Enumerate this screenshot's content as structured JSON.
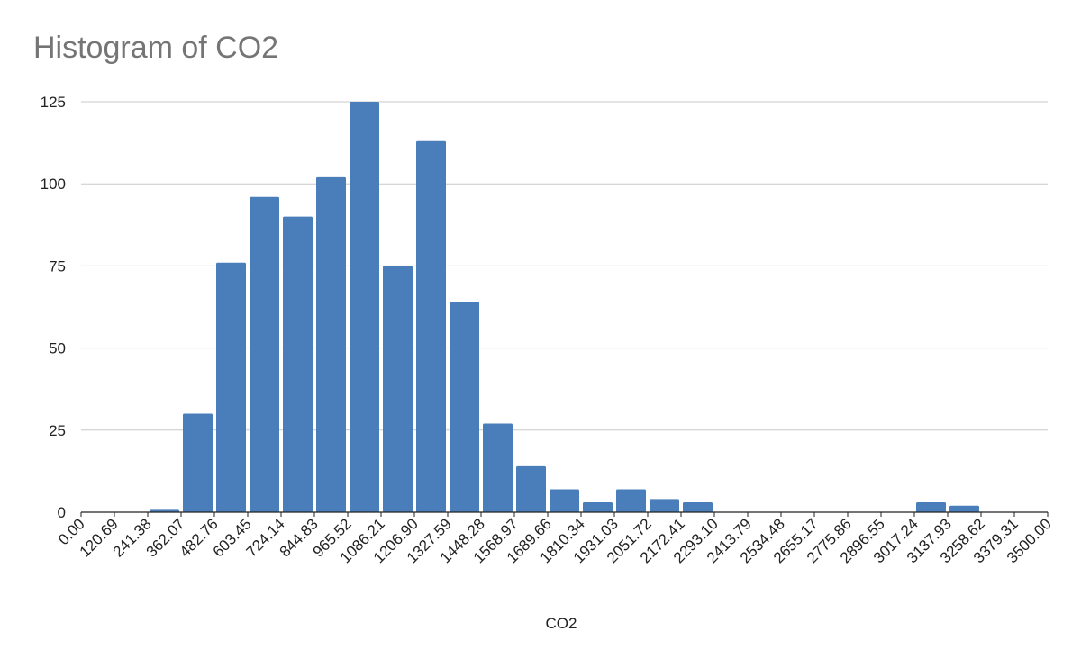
{
  "chart_data": {
    "type": "bar",
    "title": "Histogram of CO2",
    "xlabel": "CO2",
    "ylabel": "",
    "ylim": [
      0,
      125
    ],
    "y_ticks": [
      "0",
      "25",
      "50",
      "75",
      "100",
      "125"
    ],
    "grid": true,
    "bar_color": "#4a7ebb",
    "x_bin_edges": [
      "0.00",
      "120.69",
      "241.38",
      "362.07",
      "482.76",
      "603.45",
      "724.14",
      "844.83",
      "965.52",
      "1086.21",
      "1206.90",
      "1327.59",
      "1448.28",
      "1568.97",
      "1689.66",
      "1810.34",
      "1931.03",
      "2051.72",
      "2172.41",
      "2293.10",
      "2413.79",
      "2534.48",
      "2655.17",
      "2775.86",
      "2896.55",
      "3017.24",
      "3137.93",
      "3258.62",
      "3379.31",
      "3500.00"
    ],
    "values": [
      0,
      0,
      1,
      30,
      76,
      96,
      90,
      102,
      125,
      75,
      113,
      64,
      27,
      14,
      7,
      3,
      7,
      4,
      3,
      0,
      0,
      0,
      0,
      0,
      0,
      3,
      2,
      0,
      0
    ]
  }
}
